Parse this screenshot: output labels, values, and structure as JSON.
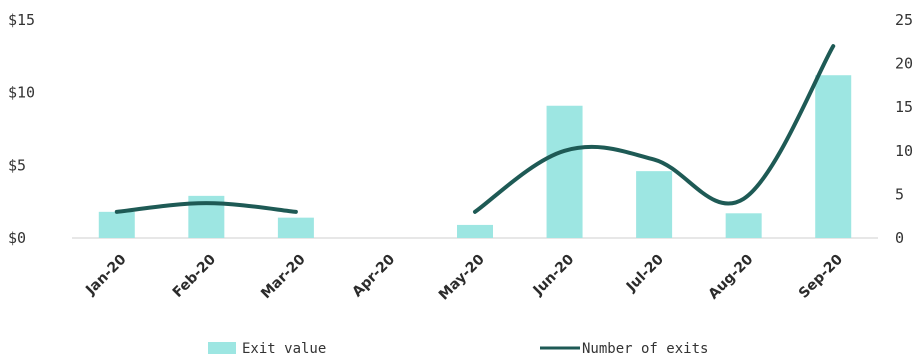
{
  "chart_data": {
    "type": "bar",
    "categories": [
      "Jan-20",
      "Feb-20",
      "Mar-20",
      "Apr-20",
      "May-20",
      "Jun-20",
      "Jul-20",
      "Aug-20",
      "Sep-20"
    ],
    "series": [
      {
        "name": "Exit value",
        "type": "bar",
        "axis": "left",
        "color": "#9de6e2",
        "values": [
          1.8,
          2.9,
          1.4,
          0,
          0.9,
          9.1,
          4.6,
          1.7,
          11.2
        ]
      },
      {
        "name": "Number of exits",
        "type": "line",
        "axis": "right",
        "color": "#1e5a55",
        "values": [
          3,
          4,
          3,
          null,
          3,
          10,
          9,
          4.5,
          22
        ]
      }
    ],
    "y_left": {
      "ylim": [
        0,
        15
      ],
      "ticks": [
        0,
        5,
        10,
        15
      ],
      "tick_labels": [
        "$0",
        "$5",
        "$10",
        "$15"
      ]
    },
    "y_right": {
      "ylim": [
        0,
        25
      ],
      "ticks": [
        0,
        5,
        10,
        15,
        20,
        25
      ],
      "tick_labels": [
        "0",
        "5",
        "10",
        "15",
        "20",
        "25"
      ]
    },
    "title": "",
    "xlabel": "",
    "ylabel": "",
    "grid": false,
    "legend_position": "bottom"
  }
}
